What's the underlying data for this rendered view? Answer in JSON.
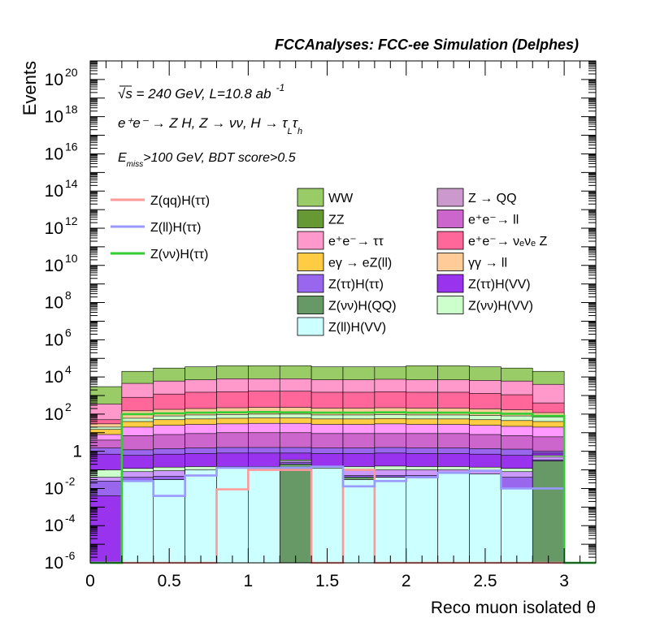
{
  "chart_data": {
    "type": "bar",
    "title": "FCCAnalyses: FCC-ee Simulation (Delphes)",
    "xlabel": "Reco muon isolated θ",
    "ylabel": "Events",
    "xlim": [
      0,
      3.2
    ],
    "ylim": [
      1e-06,
      1e+21
    ],
    "yscale": "log",
    "x_ticks": [
      {
        "v": 0,
        "label": "0"
      },
      {
        "v": 0.5,
        "label": "0.5"
      },
      {
        "v": 1,
        "label": "1"
      },
      {
        "v": 1.5,
        "label": "1.5"
      },
      {
        "v": 2,
        "label": "2"
      },
      {
        "v": 2.5,
        "label": "2.5"
      },
      {
        "v": 3,
        "label": "3"
      }
    ],
    "y_ticks": [
      {
        "exp": -6,
        "base": "10",
        "sup": "-6"
      },
      {
        "exp": -4,
        "base": "10",
        "sup": "-4"
      },
      {
        "exp": -2,
        "base": "10",
        "sup": "-2"
      },
      {
        "exp": 0,
        "base": "1",
        "sup": ""
      },
      {
        "exp": 2,
        "base": "10",
        "sup": "2"
      },
      {
        "exp": 4,
        "base": "10",
        "sup": "4"
      },
      {
        "exp": 6,
        "base": "10",
        "sup": "6"
      },
      {
        "exp": 8,
        "base": "10",
        "sup": "8"
      },
      {
        "exp": 10,
        "base": "10",
        "sup": "10"
      },
      {
        "exp": 12,
        "base": "10",
        "sup": "12"
      },
      {
        "exp": 14,
        "base": "10",
        "sup": "14"
      },
      {
        "exp": 16,
        "base": "10",
        "sup": "16"
      },
      {
        "exp": 18,
        "base": "10",
        "sup": "18"
      },
      {
        "exp": 20,
        "base": "10",
        "sup": "20"
      }
    ],
    "annotations": {
      "line1": "√s = 240 GeV, L=10.8 ab",
      "line1_sup": "-1",
      "line2": "e⁺e⁻ → Z H, Z → νν, H → τ",
      "line2_subs": [
        "L",
        "h"
      ],
      "line3_main": "E",
      "line3_sub": "miss",
      "line3_rest": ">100 GeV, BDT score>0.5"
    },
    "bin_edges": [
      0,
      0.2,
      0.4,
      0.6,
      0.8,
      1.0,
      1.2,
      1.4,
      1.6,
      1.8,
      2.0,
      2.2,
      2.4,
      2.6,
      2.8,
      3.0,
      3.2
    ],
    "stack_boundaries": [
      [
        3000.0,
        20000.0,
        30000.0,
        35000.0,
        40000.0,
        40000.0,
        40000.0,
        35000.0,
        35000.0,
        35000.0,
        40000.0,
        40000.0,
        35000.0,
        30000.0,
        20000.0,
        0
      ],
      [
        350.0,
        4500.0,
        6000.0,
        7000.0,
        8000.0,
        8000.0,
        8000.0,
        7000.0,
        7000.0,
        7500.0,
        7000.0,
        7000.0,
        6500.0,
        6000.0,
        4000.0,
        0
      ],
      [
        50,
        800,
        1200,
        1500,
        1600,
        1700,
        1700,
        1500,
        1500,
        1600,
        1500,
        1500,
        1300,
        1100,
        400,
        0
      ],
      [
        30,
        150,
        180,
        200,
        220,
        230,
        230,
        210,
        210,
        220,
        210,
        210,
        190,
        170,
        120,
        0
      ],
      [
        20,
        60,
        80,
        90,
        95,
        100,
        100,
        90,
        90,
        95,
        90,
        90,
        85,
        80,
        70,
        0
      ],
      [
        15,
        40,
        50,
        55,
        60,
        62,
        62,
        55,
        55,
        58,
        55,
        55,
        50,
        45,
        40,
        0
      ],
      [
        8,
        20,
        25,
        28,
        30,
        32,
        32,
        28,
        28,
        30,
        28,
        28,
        25,
        22,
        20,
        0
      ],
      [
        4,
        7,
        8,
        9,
        10,
        10,
        10,
        9,
        9,
        9,
        9,
        9,
        8,
        7,
        6,
        0
      ],
      [
        1.5,
        1.2,
        1.4,
        1.5,
        1.6,
        1.6,
        1.6,
        1.5,
        1.5,
        1.6,
        1.5,
        1.5,
        1.4,
        1.3,
        1.0,
        0
      ],
      [
        0.7,
        0.6,
        0.7,
        0.75,
        0.8,
        0.8,
        0.8,
        0.75,
        0.75,
        0.8,
        0.75,
        0.75,
        0.7,
        0.6,
        0.8,
        0
      ],
      [
        0.1,
        0.12,
        0.14,
        0.15,
        0.15,
        0.15,
        0.35,
        0.15,
        0.15,
        0.16,
        0.15,
        0.15,
        0.14,
        0.12,
        0.6,
        0
      ],
      [
        0.04,
        0.08,
        0.09,
        0.09,
        0.1,
        0.1,
        0.3,
        0.1,
        0.1,
        0.1,
        0.1,
        0.1,
        0.09,
        0.08,
        0.5,
        0
      ],
      [
        0.025,
        0.04,
        0.045,
        0.05,
        0.05,
        0.05,
        0.25,
        0.05,
        0.05,
        0.05,
        0.05,
        0.05,
        0.045,
        0.04,
        0.35,
        0
      ],
      [
        0.004,
        0.025,
        0.03,
        0.04,
        0.04,
        0.04,
        0.2,
        0.04,
        0.04,
        0.04,
        0.04,
        0.04,
        0.035,
        0.01,
        0.3,
        0
      ],
      [
        0,
        0.025,
        0.03,
        0.04,
        0.04,
        0.04,
        0.2,
        0.04,
        0.04,
        0.04,
        0.04,
        0.04,
        0.035,
        0.01,
        0.3,
        0
      ],
      [
        0,
        0.025,
        0.03,
        0.1,
        0.13,
        0.13,
        0,
        0.12,
        0.03,
        0.04,
        0.04,
        0.065,
        0.06,
        0.01,
        0,
        0
      ]
    ],
    "stack_colors": [
      "#99cc66",
      "#ff99cc",
      "#ff6699",
      "#ffcc99",
      "#ccffcc",
      "#ffcc44",
      "#ff99ff",
      "#cc66cc",
      "#9966ee",
      "#9933ee",
      "#ccffcc",
      "#cc99ff",
      "#9966ee",
      "#9933ee",
      "#669966",
      "#ccffff"
    ],
    "series": [
      {
        "name": "Z(qq)H(ττ)",
        "color": "#ff9999",
        "values": [
          1e-06,
          1e-06,
          1e-06,
          1e-06,
          0.009,
          0.1,
          0.1,
          1e-06,
          0.1,
          1e-06,
          1e-06,
          1e-06,
          1e-06,
          1e-06,
          1e-06,
          1e-06
        ]
      },
      {
        "name": "Z(ll)H(ττ)",
        "color": "#9999ff",
        "values": [
          1e-06,
          0.025,
          0.004,
          0.05,
          0.13,
          0.13,
          0.13,
          0.15,
          0.013,
          0.025,
          0.04,
          0.07,
          0.09,
          0.01,
          0.01,
          1e-06
        ]
      },
      {
        "name": "Z(νν)H(ττ)",
        "color": "#33cc33",
        "values": [
          1e-06,
          100,
          110,
          120,
          125,
          130,
          125,
          120,
          120,
          125,
          120,
          120,
          115,
          105,
          80,
          1e-06
        ]
      }
    ],
    "legend_backgrounds": [
      {
        "label": "WW",
        "color": "#99cc66"
      },
      {
        "label": "Z → QQ",
        "color": "#cc99cc"
      },
      {
        "label": "ZZ",
        "color": "#669933"
      },
      {
        "label": "e⁺e⁻→ ll",
        "color": "#cc66cc"
      },
      {
        "label": "e⁺e⁻→ ττ",
        "color": "#ff99cc"
      },
      {
        "label": "e⁺e⁻→ νₑνₑ Z",
        "color": "#ff6699"
      },
      {
        "label": "eγ → eZ(ll)",
        "color": "#ffcc44"
      },
      {
        "label": "γγ → ll",
        "color": "#ffcc99"
      },
      {
        "label": "Z(ττ)H(ττ)",
        "color": "#9966ee"
      },
      {
        "label": "Z(ττ)H(VV)",
        "color": "#9933ee"
      },
      {
        "label": "Z(νν)H(QQ)",
        "color": "#669966"
      },
      {
        "label": "Z(νν)H(VV)",
        "color": "#ccffcc"
      },
      {
        "label": "Z(ll)H(VV)",
        "color": "#ccffff"
      }
    ]
  }
}
